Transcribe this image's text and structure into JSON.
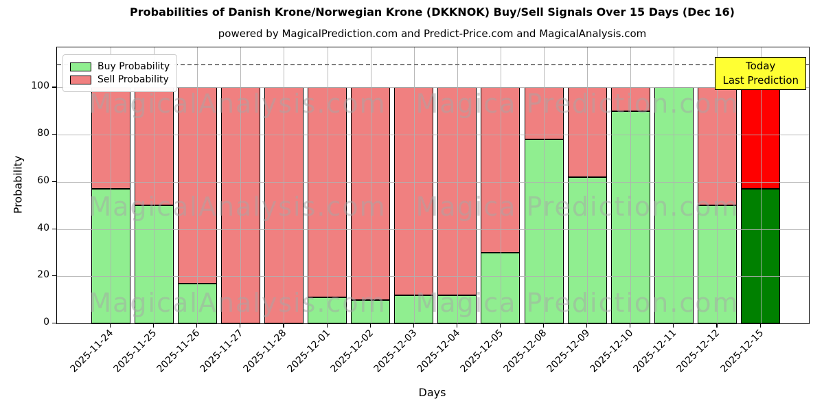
{
  "title": "Probabilities of Danish Krone/Norwegian Krone (DKKNOK) Buy/Sell Signals Over 15 Days (Dec 16)",
  "subtitle": "powered by MagicalPrediction.com and Predict-Price.com and MagicalAnalysis.com",
  "annotation": {
    "line1": "Today",
    "line2": "Last Prediction",
    "bg_color": "#ffff33"
  },
  "legend": [
    {
      "label": "Buy Probability",
      "color": "#90ee90"
    },
    {
      "label": "Sell Probability",
      "color": "#f08080"
    }
  ],
  "watermarks": {
    "left_text": "MagicalAnalysis.com",
    "right_text": "Magica Prediction.com"
  },
  "chart_data": {
    "type": "bar",
    "stacked": true,
    "title": "Probabilities of Danish Krone/Norwegian Krone (DKKNOK) Buy/Sell Signals Over 15 Days (Dec 16)",
    "xlabel": "Days",
    "ylabel": "Probability",
    "categories": [
      "2025-11-24",
      "2025-11-25",
      "2025-11-26",
      "2025-11-27",
      "2025-11-28",
      "2025-12-01",
      "2025-12-02",
      "2025-12-03",
      "2025-12-04",
      "2025-12-05",
      "2025-12-08",
      "2025-12-09",
      "2025-12-10",
      "2025-12-11",
      "2025-12-12",
      "2025-12-15"
    ],
    "series": [
      {
        "name": "Buy Probability",
        "color": "#90ee90",
        "values": [
          57,
          50,
          17,
          0,
          0,
          11,
          10,
          12,
          12,
          30,
          78,
          62,
          90,
          100,
          50,
          57
        ]
      },
      {
        "name": "Sell Probability",
        "color": "#f08080",
        "values": [
          43,
          50,
          83,
          100,
          100,
          89,
          90,
          88,
          88,
          70,
          22,
          38,
          10,
          0,
          50,
          43
        ]
      }
    ],
    "last_bar_colors": {
      "buy": "#008000",
      "sell": "#ff0000"
    },
    "yticks": [
      0,
      20,
      40,
      60,
      80,
      100
    ],
    "ylim": [
      0,
      117
    ],
    "dashed_line_y": 110,
    "grid": true,
    "legend_position": "upper left"
  }
}
